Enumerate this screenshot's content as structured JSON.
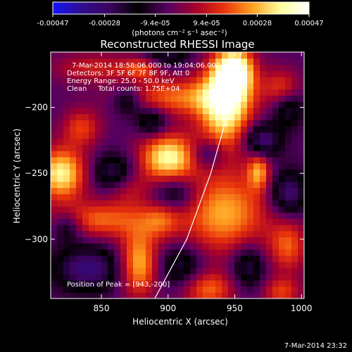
{
  "colorbar": {
    "ticks": [
      "-0.00047",
      "-0.00028",
      "-9.4e-05",
      "9.4e-05",
      "0.00028",
      "0.00047"
    ],
    "tick_values": [
      -0.00047,
      -0.00028,
      -9.4e-05,
      9.4e-05,
      0.00028,
      0.00047
    ],
    "range": [
      -0.00047,
      0.00047
    ],
    "unit_label": "(photons cm⁻² s⁻¹ asec⁻²)",
    "colormap": [
      "#1414ff",
      "#2f0c8e",
      "#3c045f",
      "#000000",
      "#540060",
      "#a3002c",
      "#e8320a",
      "#ffa020",
      "#ffff9e",
      "#ffffff"
    ]
  },
  "chart_data": {
    "type": "heatmap",
    "title": "Reconstructed RHESSI Image",
    "xlabel": "Heliocentric X (arcsec)",
    "ylabel": "Heliocentric Y (arcsec)",
    "xlim": [
      812,
      1002
    ],
    "ylim": [
      -345,
      -158
    ],
    "xticks": [
      850,
      900,
      950,
      1000
    ],
    "yticks": [
      -200,
      -250,
      -300
    ],
    "annotations": [
      "7-Mar-2014 18:58:06.000 to 19:04:06.000",
      "Detectors: 3F 5F 6F 7F 8F 9F, Att 0",
      "Energy Range: 25.0 - 50.0 keV",
      "Clean     Total counts: 1.75E+04"
    ],
    "peak_label": "Position of Peak = [943,-200]",
    "peak": [
      943,
      -200
    ],
    "limb_curve": [
      [
        955,
        -158
      ],
      [
        946,
        -200
      ],
      [
        932,
        -250
      ],
      [
        914,
        -300
      ],
      [
        890,
        -345
      ]
    ],
    "sources": [
      {
        "x": 943,
        "y": -198,
        "sx": 14,
        "sy": 24,
        "amp": 1.0
      },
      {
        "x": 950,
        "y": -172,
        "sx": 10,
        "sy": 12,
        "amp": 0.95
      },
      {
        "x": 900,
        "y": -238,
        "sx": 15,
        "sy": 13,
        "amp": 0.92
      },
      {
        "x": 820,
        "y": -250,
        "sx": 13,
        "sy": 14,
        "amp": 0.9
      },
      {
        "x": 942,
        "y": -280,
        "sx": 24,
        "sy": 22,
        "amp": 0.7
      },
      {
        "x": 878,
        "y": -318,
        "sx": 10,
        "sy": 18,
        "amp": 0.75
      },
      {
        "x": 968,
        "y": -248,
        "sx": 6,
        "sy": 10,
        "amp": 0.6
      },
      {
        "x": 905,
        "y": -192,
        "sx": 28,
        "sy": 10,
        "amp": 0.55
      },
      {
        "x": 850,
        "y": -285,
        "sx": 25,
        "sy": 10,
        "amp": 0.55
      },
      {
        "x": 835,
        "y": -215,
        "sx": 10,
        "sy": 10,
        "amp": 0.45
      },
      {
        "x": 895,
        "y": -285,
        "sx": 10,
        "sy": 10,
        "amp": 0.4
      },
      {
        "x": 930,
        "y": -338,
        "sx": 14,
        "sy": 10,
        "amp": 0.55
      },
      {
        "x": 845,
        "y": -170,
        "sx": 22,
        "sy": 8,
        "amp": 0.35
      },
      {
        "x": 880,
        "y": -170,
        "sx": 10,
        "sy": 6,
        "amp": 0.4
      },
      {
        "x": 990,
        "y": -305,
        "sx": 10,
        "sy": 14,
        "amp": 0.5
      },
      {
        "x": 985,
        "y": -340,
        "sx": 10,
        "sy": 8,
        "amp": 0.45
      },
      {
        "x": 985,
        "y": -185,
        "sx": 10,
        "sy": 10,
        "amp": 0.45
      },
      {
        "x": 870,
        "y": -260,
        "sx": 12,
        "sy": 10,
        "amp": 0.35
      },
      {
        "x": 888,
        "y": -210,
        "sx": 8,
        "sy": 8,
        "amp": -0.45
      },
      {
        "x": 930,
        "y": -235,
        "sx": 9,
        "sy": 8,
        "amp": -0.4
      },
      {
        "x": 970,
        "y": -225,
        "sx": 10,
        "sy": 9,
        "amp": -0.6
      },
      {
        "x": 990,
        "y": -265,
        "sx": 10,
        "sy": 12,
        "amp": -0.55
      },
      {
        "x": 860,
        "y": -250,
        "sx": 12,
        "sy": 10,
        "amp": -0.5
      },
      {
        "x": 905,
        "y": -265,
        "sx": 12,
        "sy": 10,
        "amp": -0.45
      },
      {
        "x": 840,
        "y": -322,
        "sx": 18,
        "sy": 12,
        "amp": -0.55
      },
      {
        "x": 910,
        "y": -320,
        "sx": 12,
        "sy": 12,
        "amp": -0.4
      },
      {
        "x": 960,
        "y": -320,
        "sx": 9,
        "sy": 12,
        "amp": -0.45
      },
      {
        "x": 870,
        "y": -195,
        "sx": 8,
        "sy": 8,
        "amp": -0.4
      },
      {
        "x": 990,
        "y": -200,
        "sx": 8,
        "sy": 10,
        "amp": -0.4
      },
      {
        "x": 900,
        "y": -160,
        "sx": 12,
        "sy": 6,
        "amp": -0.35
      },
      {
        "x": 825,
        "y": -290,
        "sx": 8,
        "sy": 8,
        "amp": -0.4
      }
    ]
  },
  "footer": {
    "timestamp": "7-Mar-2014 23:32"
  }
}
